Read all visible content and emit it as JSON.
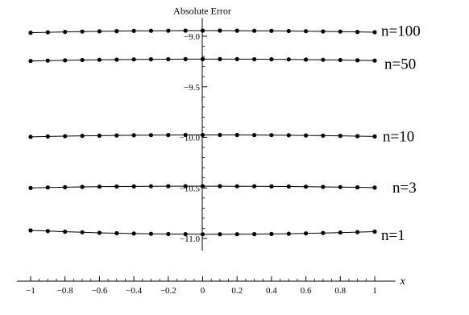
{
  "chart_data": {
    "type": "line",
    "ylabel": "Absolute Error",
    "xlabel": "x",
    "xlim": [
      -1.08,
      1.12
    ],
    "ylim": [
      -11.12,
      -8.82
    ],
    "x_ticks": [
      -1,
      -0.8,
      -0.6,
      -0.4,
      -0.2,
      0,
      0.2,
      0.4,
      0.6,
      0.8,
      1
    ],
    "x_tick_labels": [
      "−1",
      "−0.8",
      "−0.6",
      "−0.4",
      "−0.2",
      "0",
      "0.2",
      "0.4",
      "0.6",
      "0.8",
      "1"
    ],
    "y_ticks": [
      -9.0,
      -9.5,
      -10.0,
      -10.5,
      -11.0
    ],
    "y_tick_labels": [
      "−9.0",
      "−9.5",
      "−10.0",
      "−10.5",
      "−11.0"
    ],
    "x": [
      -1,
      -0.9,
      -0.8,
      -0.7,
      -0.6,
      -0.5,
      -0.4,
      -0.3,
      -0.2,
      -0.1,
      0,
      0.1,
      0.2,
      0.3,
      0.4,
      0.5,
      0.6,
      0.7,
      0.8,
      0.9,
      1
    ],
    "series": [
      {
        "name": "n=100",
        "values": [
          -8.965,
          -8.961,
          -8.957,
          -8.954,
          -8.951,
          -8.949,
          -8.947,
          -8.946,
          -8.945,
          -8.944,
          -8.944,
          -8.944,
          -8.945,
          -8.946,
          -8.947,
          -8.948,
          -8.95,
          -8.952,
          -8.954,
          -8.957,
          -8.96
        ]
      },
      {
        "name": "n=50",
        "values": [
          -9.245,
          -9.241,
          -9.238,
          -9.235,
          -9.233,
          -9.231,
          -9.229,
          -9.228,
          -9.227,
          -9.226,
          -9.226,
          -9.226,
          -9.226,
          -9.227,
          -9.228,
          -9.229,
          -9.231,
          -9.233,
          -9.235,
          -9.238,
          -9.241
        ]
      },
      {
        "name": "n=10",
        "values": [
          -9.995,
          -9.991,
          -9.988,
          -9.985,
          -9.983,
          -9.981,
          -9.979,
          -9.978,
          -9.977,
          -9.976,
          -9.976,
          -9.976,
          -9.976,
          -9.977,
          -9.978,
          -9.979,
          -9.981,
          -9.983,
          -9.985,
          -9.988,
          -9.991
        ]
      },
      {
        "name": "n=3",
        "values": [
          -10.5,
          -10.496,
          -10.493,
          -10.49,
          -10.488,
          -10.486,
          -10.485,
          -10.484,
          -10.483,
          -10.483,
          -10.483,
          -10.483,
          -10.484,
          -10.484,
          -10.485,
          -10.486,
          -10.488,
          -10.49,
          -10.492,
          -10.494,
          -10.497
        ]
      },
      {
        "name": "n=1",
        "values": [
          -10.92,
          -10.927,
          -10.933,
          -10.939,
          -10.944,
          -10.948,
          -10.951,
          -10.954,
          -10.956,
          -10.957,
          -10.958,
          -10.958,
          -10.958,
          -10.957,
          -10.955,
          -10.953,
          -10.95,
          -10.946,
          -10.942,
          -10.937,
          -10.932
        ]
      }
    ],
    "grid": false,
    "legend": "none"
  }
}
